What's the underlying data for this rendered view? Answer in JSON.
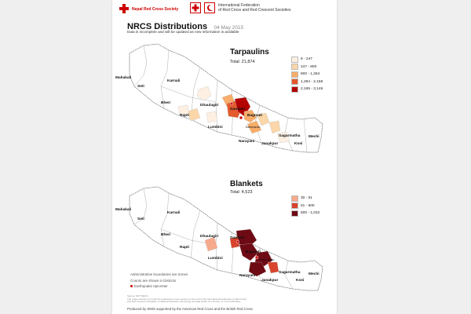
{
  "header": {
    "org_left": "Nepal Red Cross Society",
    "org_right_line1": "International Federation",
    "org_right_line2": "of Red Cross and Red Crescent Societies",
    "title": "NRCS Distributions",
    "date": "04 May 2015",
    "subtitle": "Data is incomplete and will be updated as new information is available"
  },
  "tarpaulins": {
    "title": "Tarpaulins",
    "total": "Total: 21,874",
    "legend": [
      {
        "label": "6 - 247",
        "color": "#fdf0e2"
      },
      {
        "label": "247 - 800",
        "color": "#fbd6a8"
      },
      {
        "label": "800 - 1,284",
        "color": "#f8ad6a"
      },
      {
        "label": "1,284 - 2,165",
        "color": "#e25a2d"
      },
      {
        "label": "2,165 - 3,146",
        "color": "#b30000"
      }
    ]
  },
  "blankets": {
    "title": "Blankets",
    "total": "Total: 4,523",
    "legend": [
      {
        "label": "30 - 51",
        "color": "#f7a98b"
      },
      {
        "label": "51 - 500",
        "color": "#d8442c"
      },
      {
        "label": "500 - 1,032",
        "color": "#6e0a14"
      }
    ]
  },
  "zones": [
    "Mahakali",
    "Seti",
    "Karnali",
    "Bheri",
    "Rapti",
    "Dhaulagiri",
    "Gandaki",
    "Lumbini",
    "Bagmati",
    "Narayani",
    "Janakpur",
    "Sagarmatha",
    "Kosi",
    "Mechi"
  ],
  "kathmandu": "Kathmandu",
  "notes": {
    "line1": "Administrative boundaries are Zones",
    "line2": "Counts are shown in Districts",
    "epicenter": "Earthquake epicenter"
  },
  "source": {
    "line1": "Source: NPT NRCS",
    "line2": "The maps used do not imply the expression of any opinion on the part of the International Federation of Red Cross",
    "line3": "and Red Crescent Societies or National Societies concerning the legal status of a territory or of its authorities."
  },
  "footer": "Produced by SIMS supported by the American Red Cross and the British Red Cross",
  "colors": {
    "accent": "#cc0000"
  }
}
